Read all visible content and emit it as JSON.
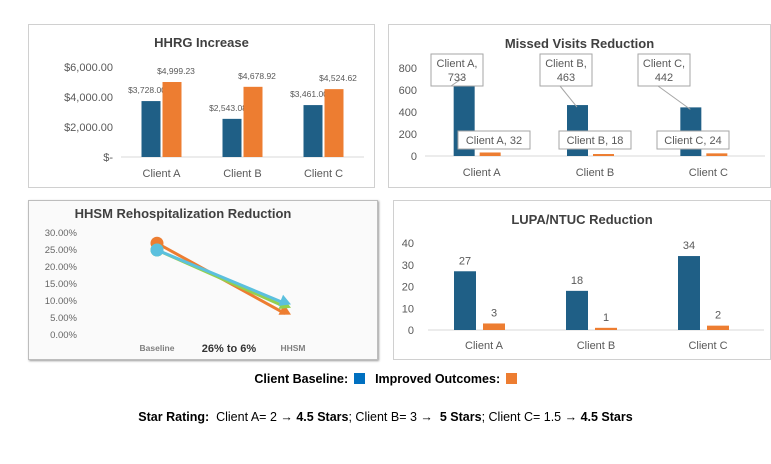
{
  "colors": {
    "baseline": "#1f5f86",
    "improved": "#ed7d31",
    "legend_baseline": "#0070c0",
    "axis": "#595959",
    "grid": "#d9d9d9"
  },
  "chart_data": [
    {
      "id": "hhrg",
      "type": "bar",
      "title": "HHRG Increase",
      "categories": [
        "Client A",
        "Client B",
        "Client C"
      ],
      "series": [
        {
          "values": [
            3728.0,
            2543.08,
            3461.0
          ],
          "labels": [
            "$3,728.00",
            "$2,543.08",
            "$3,461.00"
          ]
        },
        {
          "values": [
            4999.23,
            4678.92,
            4524.62
          ],
          "labels": [
            "$4,999.23",
            "$4,678.92",
            "$4,524.62"
          ]
        }
      ],
      "yticks": [
        "$6,000.00",
        "$4,000.00",
        "$2,000.00",
        "$-"
      ],
      "ylim": [
        0,
        6000
      ]
    },
    {
      "id": "missed",
      "type": "bar",
      "title": "Missed Visits Reduction",
      "categories": [
        "Client A",
        "Client B",
        "Client C"
      ],
      "series": [
        {
          "values": [
            733,
            463,
            442
          ],
          "callouts": [
            [
              "Client A,",
              "733"
            ],
            [
              "Client B,",
              "463"
            ],
            [
              "Client C,",
              "442"
            ]
          ]
        },
        {
          "values": [
            32,
            18,
            24
          ],
          "callouts": [
            "Client A, 32",
            "Client B, 18",
            "Client C, 24"
          ]
        }
      ],
      "yticks": [
        "800",
        "600",
        "400",
        "200",
        "0"
      ],
      "ylim": [
        0,
        800
      ]
    },
    {
      "id": "hhsm",
      "type": "line",
      "title": "HHSM Rehospitalization Reduction",
      "categories": [
        "Baseline",
        "HHSM"
      ],
      "center_note": "26% to 6%",
      "series": [
        {
          "color": "#ed7d31",
          "values": [
            0.27,
            0.06
          ]
        },
        {
          "color": "#92d050",
          "values": [
            0.25,
            0.08
          ]
        },
        {
          "color": "#5bc0de",
          "values": [
            0.25,
            0.09
          ]
        }
      ],
      "yticks": [
        "30.00%",
        "25.00%",
        "20.00%",
        "15.00%",
        "10.00%",
        "5.00%",
        "0.00%"
      ],
      "ylim": [
        0,
        0.3
      ]
    },
    {
      "id": "lupa",
      "type": "bar",
      "title": "LUPA/NTUC Reduction",
      "categories": [
        "Client A",
        "Client B",
        "Client C"
      ],
      "series": [
        {
          "values": [
            27,
            18,
            34
          ],
          "labels": [
            "27",
            "18",
            "34"
          ]
        },
        {
          "values": [
            3,
            1,
            2
          ],
          "labels": [
            "3",
            "1",
            "2"
          ]
        }
      ],
      "yticks": [
        "40",
        "30",
        "20",
        "10",
        "0"
      ],
      "ylim": [
        0,
        40
      ]
    }
  ],
  "legend": {
    "baseline_label": "Client Baseline:",
    "improved_label": "Improved Outcomes:"
  },
  "star_rating": {
    "label": "Star Rating:",
    "a_text": "Client A= 2 ",
    "arrow": "→",
    "a_stars": "4.5 Stars",
    "sep1": "; Client B= 3 ",
    "b_stars": "5 Stars",
    "sep2": "; Client C= 1.5 ",
    "c_stars": "4.5 Stars"
  }
}
